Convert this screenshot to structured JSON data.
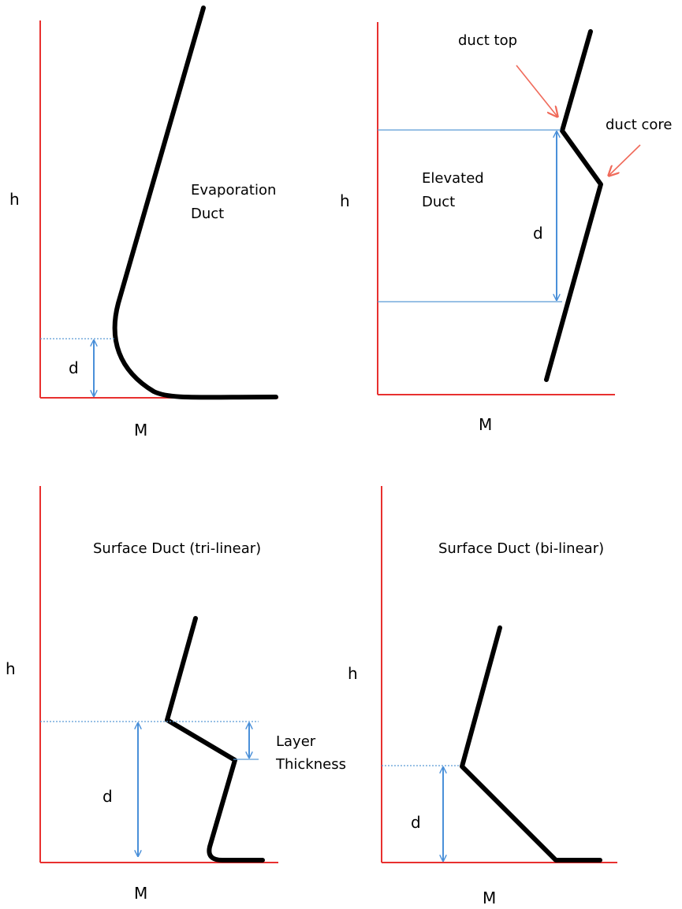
{
  "colors": {
    "axis": "#e8302f",
    "profile": "#000000",
    "guide": "#5b9bd5",
    "arrow_dimension": "#4a90d9",
    "pointer": "#f06a5a"
  },
  "panels": {
    "evaporation": {
      "y_axis_label": "h",
      "x_axis_label": "M",
      "title_line1": "Evaporation",
      "title_line2": "Duct",
      "dimension_label": "d"
    },
    "elevated": {
      "y_axis_label": "h",
      "x_axis_label": "M",
      "title_line1": "Elevated",
      "title_line2": "Duct",
      "dimension_label": "d",
      "pointer_top_label": "duct top",
      "pointer_core_label": "duct core"
    },
    "surface_trilinear": {
      "y_axis_label": "h",
      "x_axis_label": "M",
      "title": "Surface Duct  (tri-linear)",
      "dimension_label": "d",
      "layer_label_line1": "Layer",
      "layer_label_line2": "Thickness"
    },
    "surface_bilinear": {
      "y_axis_label": "h",
      "x_axis_label": "M",
      "title": "Surface Duct  (bi-linear)",
      "dimension_label": "d"
    }
  }
}
